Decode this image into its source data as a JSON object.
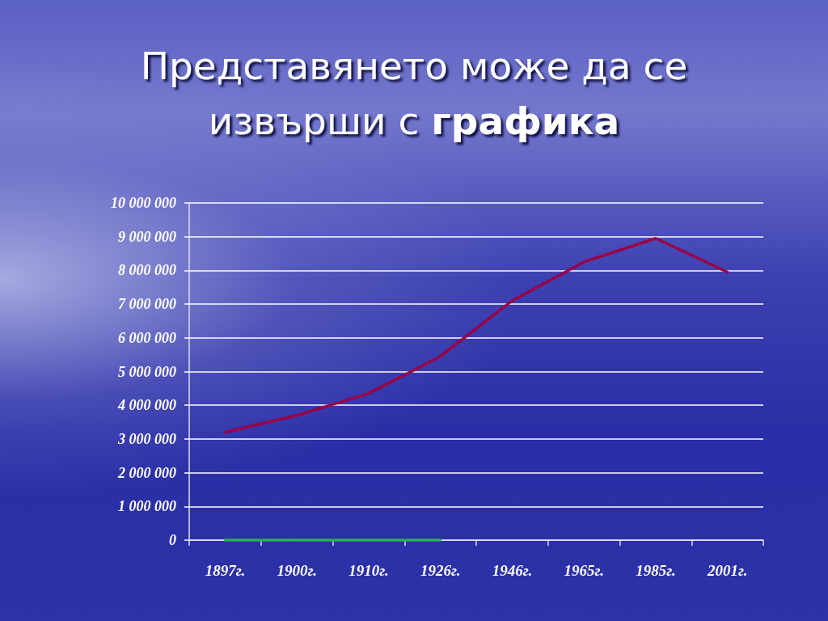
{
  "chart_data": {
    "type": "line",
    "title": "Представянето може да се извърши с графика",
    "categories": [
      "1897г.",
      "1900г.",
      "1910г.",
      "1926г.",
      "1946г.",
      "1965г.",
      "1985г.",
      "2001г."
    ],
    "series": [
      {
        "color": "#9b0045",
        "values": [
          3200000,
          3700000,
          4350000,
          5450000,
          7100000,
          8250000,
          8950000,
          7950000
        ]
      },
      {
        "color": "#2db34a",
        "values": [
          0,
          0,
          0,
          0,
          null,
          null,
          null,
          null
        ]
      }
    ],
    "ylim": [
      0,
      10000000
    ],
    "yticks": [
      0,
      {
        "value": 1000000,
        "label": "1 000 000"
      },
      {
        "value": 2000000,
        "label": "2 000 000"
      },
      {
        "value": 3000000,
        "label": "3 000 000"
      },
      {
        "value": 4000000,
        "label": "4 000 000"
      },
      {
        "value": 5000000,
        "label": "5 000 000"
      },
      {
        "value": 6000000,
        "label": "6 000 000"
      },
      {
        "value": 7000000,
        "label": "7 000 000"
      },
      {
        "value": 8000000,
        "label": "8 000 000"
      },
      {
        "value": 9000000,
        "label": "9 000 000"
      },
      {
        "value": 10000000,
        "label": "10 000 000"
      }
    ],
    "grid": "y",
    "marker": "none"
  }
}
